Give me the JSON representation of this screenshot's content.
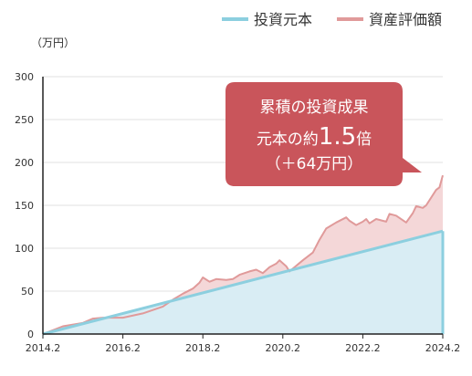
{
  "colors": {
    "principal_line": "#8ccfdf",
    "principal_fill": "#d9edf4",
    "value_line": "#e09a9a",
    "value_fill": "#f4d7d8",
    "callout_bg": "#c9555b",
    "axis": "#222222",
    "grid": "#e0e0e0"
  },
  "legend": {
    "principal_label": "投資元本",
    "value_label": "資産評価額"
  },
  "callout": {
    "line1": "累積の投資成果",
    "line2_prefix": "元本の約",
    "line2_number": "1.5",
    "line2_suffix": "倍",
    "line3": "（＋64万円）"
  },
  "chart_data": {
    "type": "area",
    "x_is_dates": true,
    "ylabel": "（万円）",
    "ylim": [
      0,
      300
    ],
    "yticks": [
      0,
      50,
      100,
      150,
      200,
      250,
      300
    ],
    "xticks": [
      "2014.2",
      "2016.2",
      "2018.2",
      "2020.2",
      "2022.2",
      "2024.2"
    ],
    "xlim": [
      "2014.2",
      "2024.2"
    ],
    "grid": "horizontal",
    "legend_position": "top-right",
    "series": [
      {
        "name": "投資元本",
        "x": [
          "2014.2",
          "2024.2"
        ],
        "values": [
          0,
          120
        ]
      },
      {
        "name": "資産評価額",
        "x": [
          "2014.2",
          "2014.8",
          "2015.2",
          "2015.5",
          "2015.8",
          "2016.2",
          "2016.8",
          "2017.2",
          "2017.5",
          "2017.8",
          "2017.11",
          "2018.1",
          "2018.2",
          "2018.4",
          "2018.6",
          "2018.9",
          "2018.11",
          "2019.1",
          "2019.4",
          "2019.6",
          "2019.8",
          "2019.10",
          "2019.12",
          "2020.1",
          "2020.3",
          "2020.4",
          "2020.8",
          "2020.11",
          "2021.1",
          "2021.3",
          "2021.6",
          "2021.9",
          "2021.10",
          "2021.12",
          "2022.2",
          "2022.3",
          "2022.4",
          "2022.6",
          "2022.9",
          "2022.10",
          "2022.12",
          "2023.3",
          "2023.5",
          "2023.6",
          "2023.8",
          "2023.9",
          "2023.12",
          "2024.1",
          "2024.2"
        ],
        "values": [
          0,
          9,
          13,
          18,
          19,
          19,
          24,
          32,
          40,
          47,
          53,
          60,
          66,
          61,
          64,
          63,
          64,
          69,
          73,
          75,
          71,
          78,
          82,
          86,
          79,
          73,
          86,
          95,
          110,
          123,
          130,
          136,
          132,
          127,
          131,
          134,
          129,
          134,
          131,
          140,
          138,
          130,
          141,
          149,
          147,
          150,
          168,
          171,
          185
        ]
      }
    ]
  }
}
